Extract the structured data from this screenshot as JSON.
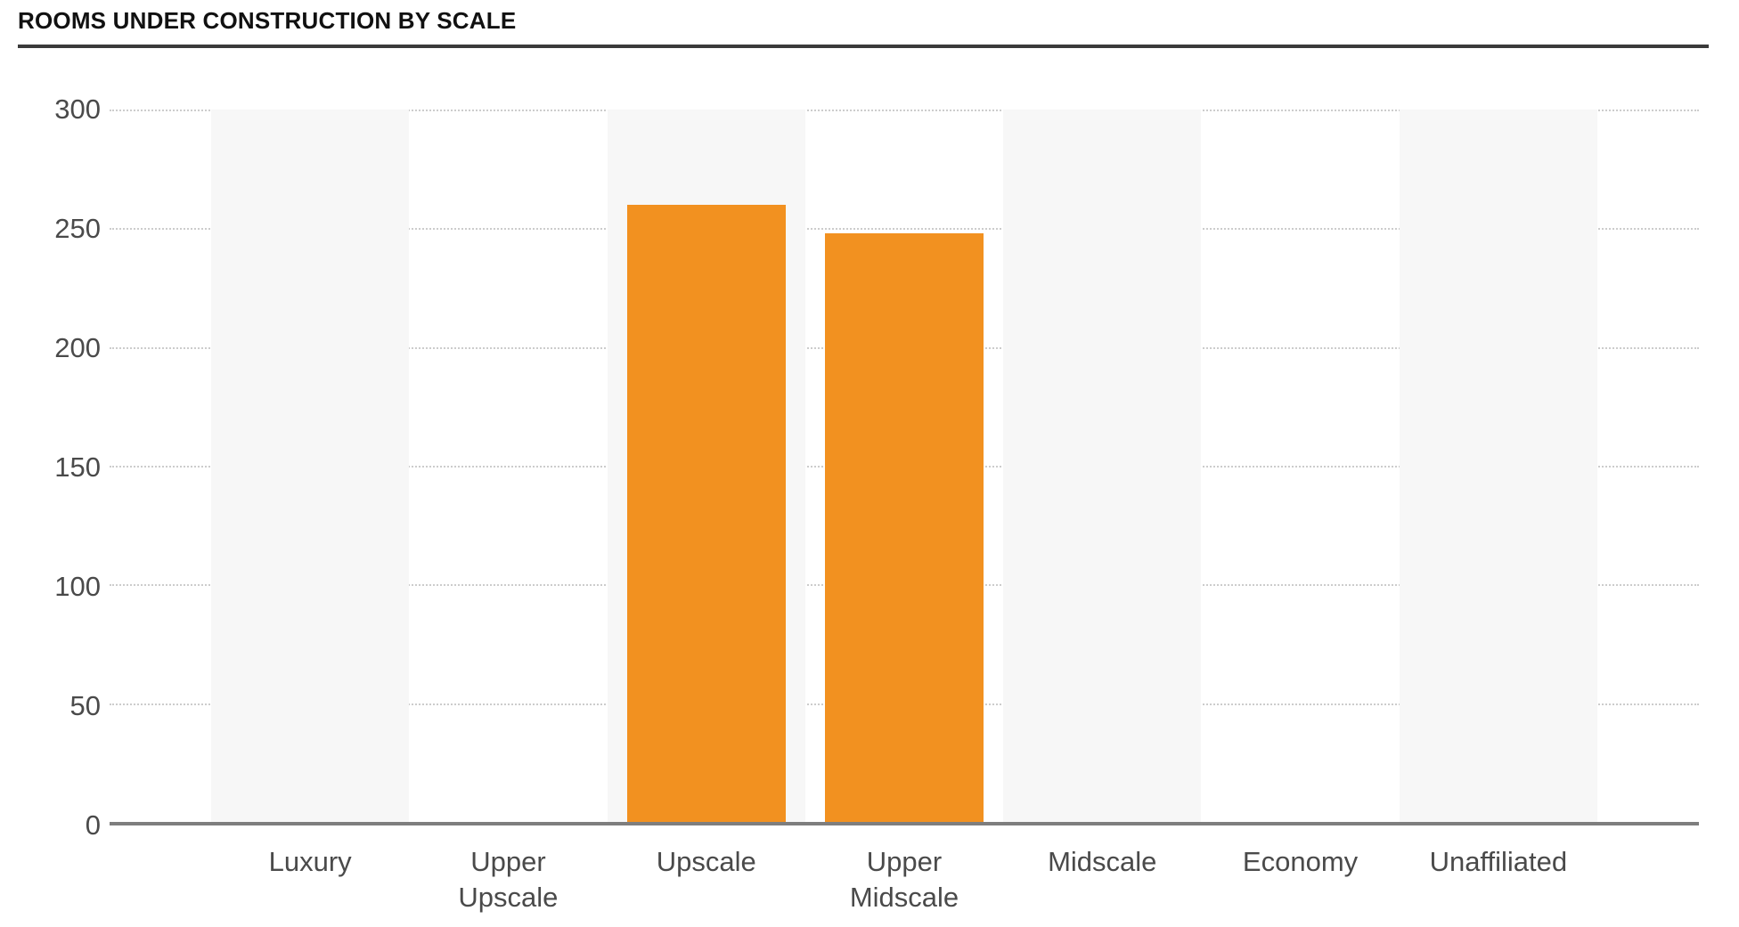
{
  "header": {
    "title": "ROOMS UNDER CONSTRUCTION BY SCALE"
  },
  "chart_data": {
    "type": "bar",
    "title": "ROOMS UNDER CONSTRUCTION BY SCALE",
    "categories": [
      "Luxury",
      "Upper Upscale",
      "Upscale",
      "Upper Midscale",
      "Midscale",
      "Economy",
      "Unaffiliated"
    ],
    "values": [
      0,
      0,
      260,
      248,
      0,
      0,
      0
    ],
    "xlabel": "",
    "ylabel": "",
    "ylim": [
      0,
      300
    ],
    "ytick_interval": 50,
    "ytick_labels": [
      "0",
      "50",
      "100",
      "150",
      "200",
      "250",
      "300"
    ],
    "grid": "horizontal-dotted",
    "legend": "none",
    "banded_columns": [
      0,
      2,
      4,
      6
    ],
    "colors": {
      "bar": "#f29120",
      "band": "#f7f7f7",
      "gridline": "#cccccc",
      "axis_line": "#7e7e7e",
      "tick_label": "#4a4a4a",
      "title": "#111111",
      "title_rule": "#3a3a3a"
    }
  }
}
